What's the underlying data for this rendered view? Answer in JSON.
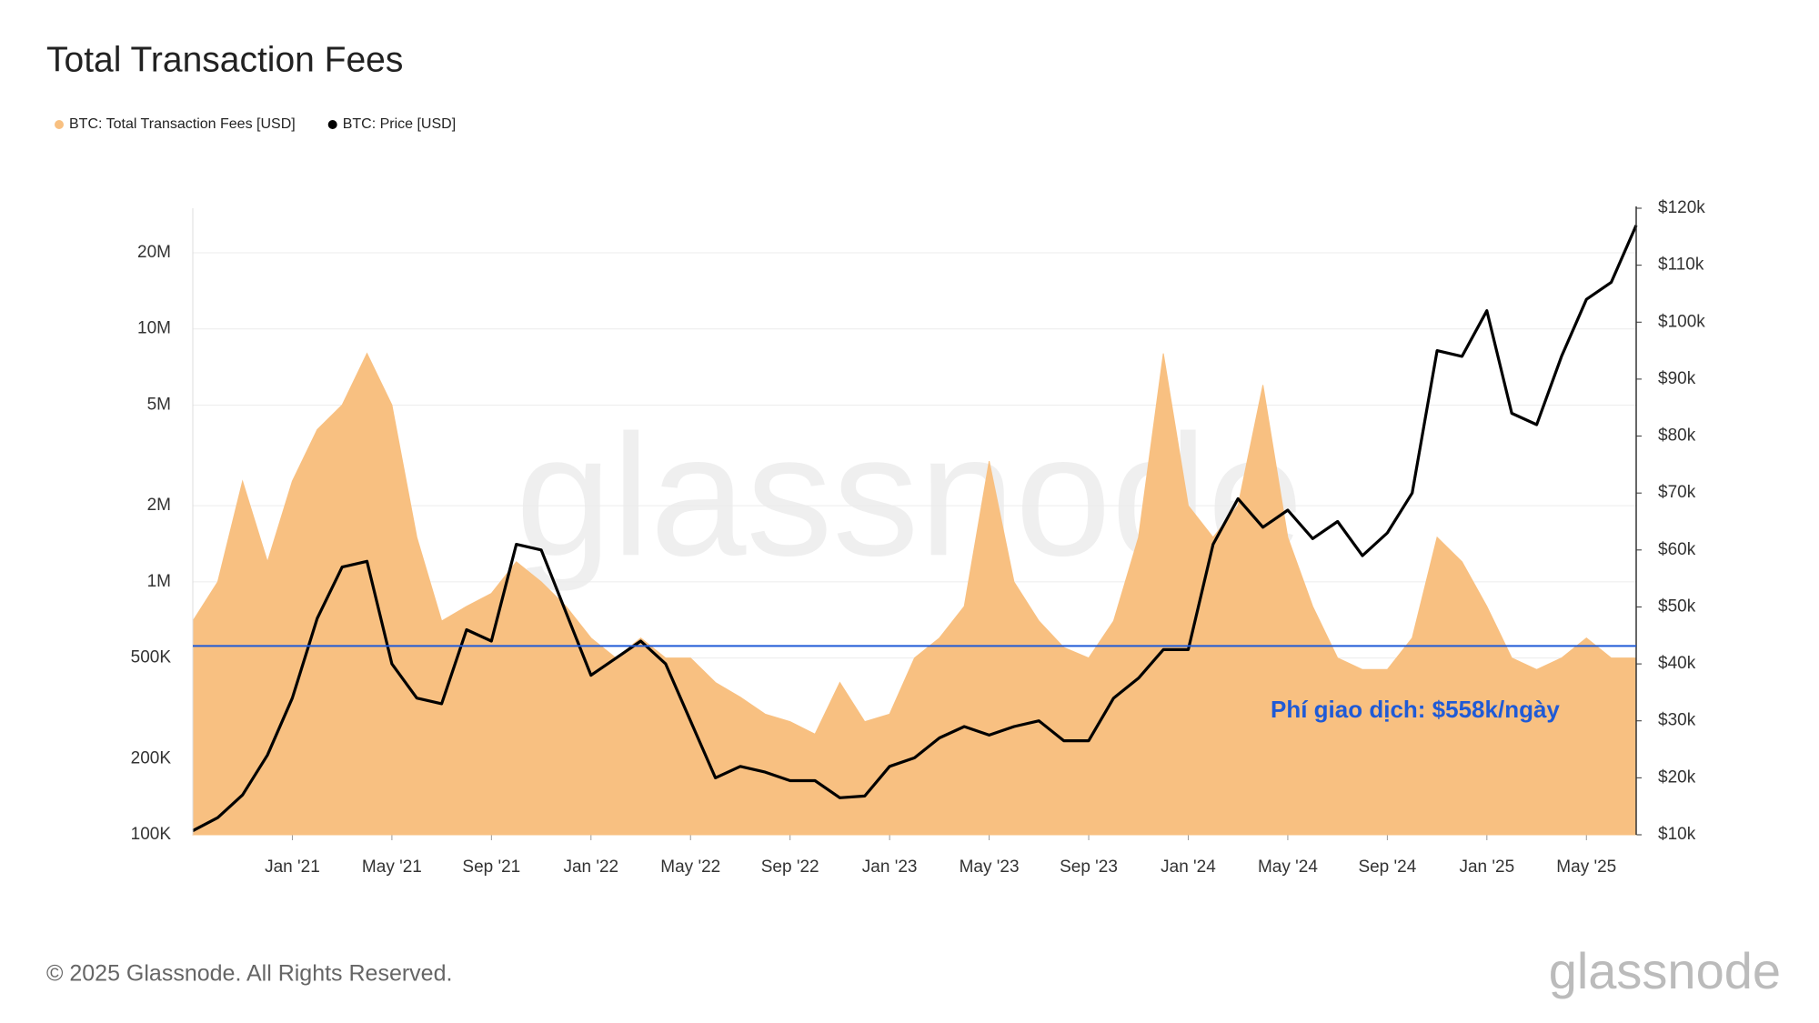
{
  "chart_data": {
    "type": "area-line",
    "title": "Total Transaction Fees",
    "footer": "© 2025 Glassnode. All Rights Reserved.",
    "brand": "glassnode",
    "watermark": "glassnode",
    "x": [
      "2020-09",
      "2020-10",
      "2020-11",
      "2020-12",
      "2021-01",
      "2021-02",
      "2021-03",
      "2021-04",
      "2021-05",
      "2021-06",
      "2021-07",
      "2021-08",
      "2021-09",
      "2021-10",
      "2021-11",
      "2021-12",
      "2022-01",
      "2022-02",
      "2022-03",
      "2022-04",
      "2022-05",
      "2022-06",
      "2022-07",
      "2022-08",
      "2022-09",
      "2022-10",
      "2022-11",
      "2022-12",
      "2023-01",
      "2023-02",
      "2023-03",
      "2023-04",
      "2023-05",
      "2023-06",
      "2023-07",
      "2023-08",
      "2023-09",
      "2023-10",
      "2023-11",
      "2023-12",
      "2024-01",
      "2024-02",
      "2024-03",
      "2024-04",
      "2024-05",
      "2024-06",
      "2024-07",
      "2024-08",
      "2024-09",
      "2024-10",
      "2024-11",
      "2024-12",
      "2025-01",
      "2025-02",
      "2025-03",
      "2025-04",
      "2025-05",
      "2025-06",
      "2025-07"
    ],
    "xlim": [
      "2020-09",
      "2025-07"
    ],
    "xticks": [
      {
        "value": "2021-01",
        "label": "Jan '21"
      },
      {
        "value": "2021-05",
        "label": "May '21"
      },
      {
        "value": "2021-09",
        "label": "Sep '21"
      },
      {
        "value": "2022-01",
        "label": "Jan '22"
      },
      {
        "value": "2022-05",
        "label": "May '22"
      },
      {
        "value": "2022-09",
        "label": "Sep '22"
      },
      {
        "value": "2023-01",
        "label": "Jan '23"
      },
      {
        "value": "2023-05",
        "label": "May '23"
      },
      {
        "value": "2023-09",
        "label": "Sep '23"
      },
      {
        "value": "2024-01",
        "label": "Jan '24"
      },
      {
        "value": "2024-05",
        "label": "May '24"
      },
      {
        "value": "2024-09",
        "label": "Sep '24"
      },
      {
        "value": "2025-01",
        "label": "Jan '25"
      },
      {
        "value": "2025-05",
        "label": "May '25"
      }
    ],
    "ylim": [
      100000,
      30000000
    ],
    "log_y": true,
    "yticks": [
      {
        "value": 100000,
        "label": "100K"
      },
      {
        "value": 200000,
        "label": "200K"
      },
      {
        "value": 500000,
        "label": "500K"
      },
      {
        "value": 1000000,
        "label": "1M"
      },
      {
        "value": 2000000,
        "label": "2M"
      },
      {
        "value": 5000000,
        "label": "5M"
      },
      {
        "value": 10000000,
        "label": "10M"
      },
      {
        "value": 20000000,
        "label": "20M"
      }
    ],
    "y2lim": [
      10000,
      120000
    ],
    "y2ticks": [
      {
        "value": 10000,
        "label": "$10k"
      },
      {
        "value": 20000,
        "label": "$20k"
      },
      {
        "value": 30000,
        "label": "$30k"
      },
      {
        "value": 40000,
        "label": "$40k"
      },
      {
        "value": 50000,
        "label": "$50k"
      },
      {
        "value": 60000,
        "label": "$60k"
      },
      {
        "value": 70000,
        "label": "$70k"
      },
      {
        "value": 80000,
        "label": "$80k"
      },
      {
        "value": 90000,
        "label": "$90k"
      },
      {
        "value": 100000,
        "label": "$100k"
      },
      {
        "value": 110000,
        "label": "$110k"
      },
      {
        "value": 120000,
        "label": "$120k"
      }
    ],
    "grid": true,
    "series": [
      {
        "name": "BTC: Total Transaction Fees [USD]",
        "color": "#f8c081",
        "axis": "y",
        "values": [
          700000,
          1000000,
          2500000,
          1200000,
          2500000,
          4000000,
          5000000,
          8000000,
          5000000,
          1500000,
          700000,
          800000,
          900000,
          1200000,
          1000000,
          800000,
          600000,
          500000,
          600000,
          500000,
          500000,
          400000,
          350000,
          300000,
          280000,
          250000,
          400000,
          280000,
          300000,
          500000,
          600000,
          800000,
          3000000,
          1000000,
          700000,
          550000,
          500000,
          700000,
          1500000,
          8000000,
          2000000,
          1500000,
          2000000,
          6000000,
          1500000,
          800000,
          500000,
          450000,
          450000,
          600000,
          1500000,
          1200000,
          800000,
          500000,
          450000,
          500000,
          600000,
          500000,
          500000
        ]
      },
      {
        "name": "BTC: Price [USD]",
        "color": "#000000",
        "axis": "y2",
        "values": [
          10700,
          13000,
          17000,
          24000,
          34000,
          48000,
          57000,
          58000,
          40000,
          34000,
          33000,
          46000,
          44000,
          61000,
          60000,
          49000,
          38000,
          41000,
          44000,
          40000,
          30000,
          20000,
          22000,
          21000,
          19500,
          19500,
          16500,
          16800,
          22000,
          23500,
          27000,
          29000,
          27500,
          29000,
          30000,
          26500,
          26500,
          34000,
          37500,
          42500,
          42500,
          61000,
          69000,
          64000,
          67000,
          62000,
          65000,
          59000,
          63000,
          70000,
          95000,
          94000,
          102000,
          84000,
          82000,
          94000,
          104000,
          107000,
          117000
        ]
      }
    ],
    "annotations": [
      {
        "text": "Phí giao dịch: $558k/ngày",
        "value": 558000,
        "color": "#1f5ad6"
      }
    ]
  }
}
